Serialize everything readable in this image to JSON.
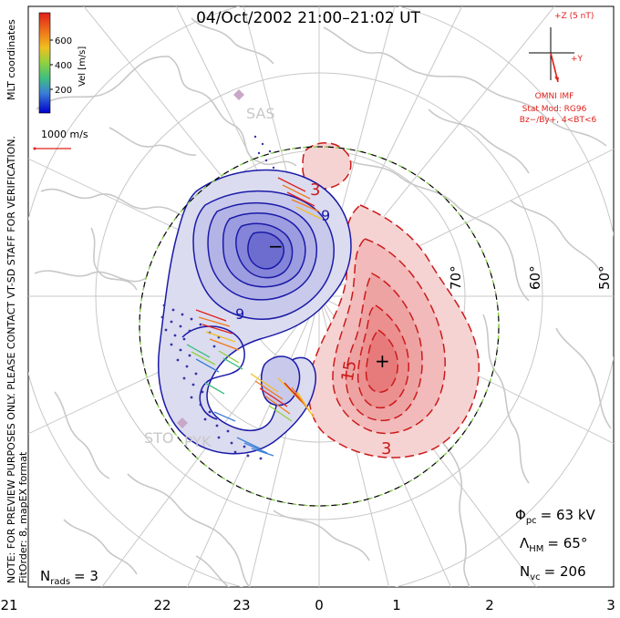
{
  "title": "04/Oct/2002 21:00–21:02 UT",
  "colorbar": {
    "label": "Vel [m/s]",
    "ticks": [
      "200",
      "400",
      "600"
    ],
    "colors": [
      "#0000cc",
      "#3a7fd6",
      "#3fbf7f",
      "#8fd13f",
      "#f0c020",
      "#f07a1a",
      "#e0201a"
    ]
  },
  "coordinates_label": "MLT coordinates",
  "reference_vector": "1000 m/s",
  "disclaimer": "NOTE: FOR PREVIEW PURPOSES ONLY. PLEASE CONTACT VT-SD STAFF FOR VERIFICATION.",
  "fit_info": "FitOrder: 8, mapEX format",
  "imf": {
    "z_label": "+Z (5 nT)",
    "y_label": "+Y",
    "source": "OMNI IMF",
    "stat_mod": "Stat Mod: RG96",
    "condition": "Bz−/By+, 4<BT<6"
  },
  "stats": {
    "phi_pc": "Φ",
    "phi_pc_sub": "pc",
    "phi_pc_value": "= 63 kV",
    "lambda_hm": "Λ",
    "lambda_hm_sub": "HM",
    "lambda_hm_value": "= 65°",
    "n_vc": "N",
    "n_vc_sub": "vc",
    "n_vc_value": "= 206",
    "n_rads": "N",
    "n_rads_sub": "rads",
    "n_rads_value": "= 3"
  },
  "latitude_labels": [
    "70°",
    "60°",
    "50°"
  ],
  "mlt_labels": [
    "21",
    "22",
    "23",
    "0",
    "1",
    "2",
    "3"
  ],
  "contour_labels": {
    "neg_9_a": "9",
    "neg_9_b": "9",
    "pos_3_top": "3",
    "pos_15": "15",
    "pos_3_bottom": "3",
    "min_marker": "−",
    "max_marker": "+"
  },
  "stations": [
    "SAS",
    "STO",
    "PYK"
  ],
  "colors": {
    "negative": "#1a1aa8",
    "positive": "#cc1a1a",
    "map": "#c8c8c8",
    "grid": "#c8c8c8",
    "hmb": "#7fcf3f"
  }
}
